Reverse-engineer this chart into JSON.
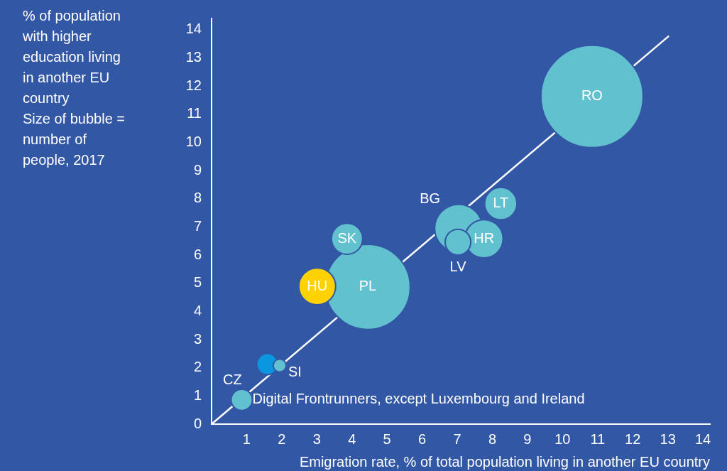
{
  "chart_data": {
    "type": "bubble",
    "ylabel": "% of population with higher education living in another EU country",
    "xlabel": "Emigration rate, % of total population living in another EU country",
    "annotations": [
      "Size of bubble = number of people, 2017",
      {
        "text": "RO",
        "x": 10.84,
        "y": 11.63
      },
      {
        "text": "PL",
        "x": 4.45,
        "y": 4.87
      },
      {
        "text": "SK",
        "x": 3.86,
        "y": 6.58
      },
      {
        "text": "HU",
        "x": 3.01,
        "y": 4.89
      },
      {
        "text": "BG",
        "x": 7.04,
        "y": 6.95
      },
      {
        "text": "HR",
        "x": 7.76,
        "y": 6.58
      },
      {
        "text": "LV",
        "x": 7.02,
        "y": 6.46
      },
      {
        "text": "LT",
        "x": 8.24,
        "y": 7.83
      },
      {
        "text": "CZ",
        "x": 1.59,
        "y": 2.13
      },
      {
        "text": "SI",
        "x": 1.94,
        "y": 2.08
      },
      {
        "text": "Digital Frontrunners, except Luxembourg and Ireland",
        "x": 0.86,
        "y": 0.86
      }
    ],
    "xlim": [
      0,
      14.2
    ],
    "xticks": [
      1,
      2,
      3,
      4,
      5,
      6,
      7,
      8,
      9,
      10,
      11,
      12,
      13,
      14
    ],
    "ylim": [
      0,
      14.4
    ],
    "yticks": [
      0,
      1,
      2,
      3,
      4,
      5,
      6,
      7,
      8,
      9,
      10,
      11,
      12,
      13,
      14
    ],
    "grid": false,
    "legend": false,
    "series": [
      {
        "x": [
          10.84,
          4.45,
          3.86,
          3.01,
          7.04,
          7.76,
          7.02,
          8.24,
          1.59,
          1.94,
          0.86
        ],
        "values": [
          11.63,
          4.87,
          6.58,
          4.89,
          6.95,
          6.58,
          6.46,
          7.83,
          2.13,
          2.08,
          0.86
        ],
        "sizes": [
          1,
          0.69,
          0.093,
          0.13,
          0.22,
          0.14,
          0.063,
          0.1,
          0.043,
          0.016,
          0.043
        ],
        "colors": [
          "#62c1cf",
          "#62c1cf",
          "#62c1cf",
          "#ffd200",
          "#62c1cf",
          "#62c1cf",
          "#62c1cf",
          "#62c1cf",
          "#0a97e0",
          "#62c1cf",
          "#62c1cf"
        ]
      },
      {
        "type": "line",
        "color": "#ffffff",
        "x": [
          0,
          13.03
        ],
        "values": [
          0,
          13.78
        ],
        "marker": "none"
      }
    ]
  }
}
